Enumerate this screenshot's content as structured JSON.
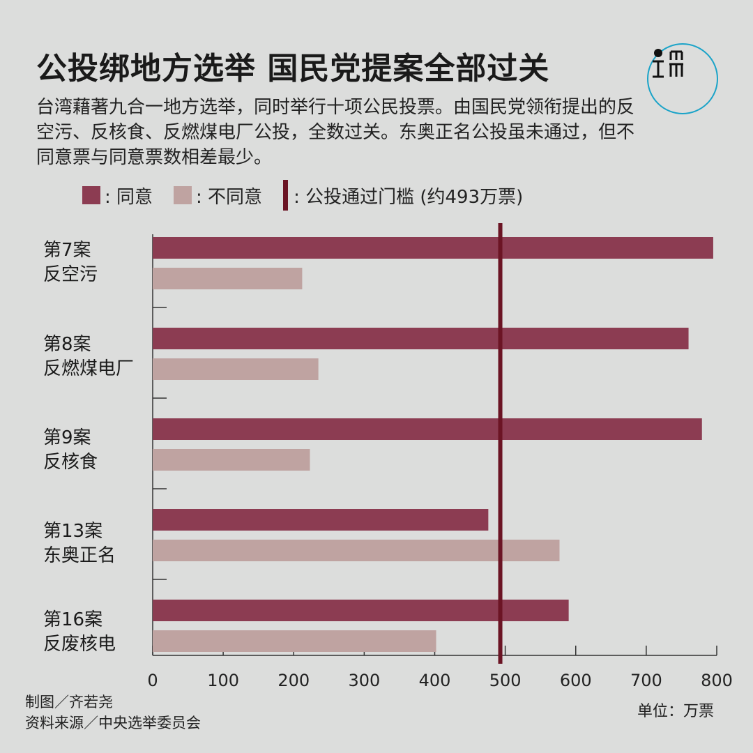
{
  "header": {
    "title": "公投绑地方选举 国民党提案全部过关",
    "subtitle": "台湾藉著九合一地方选举，同时举行十项公民投票。由国民党领衔提出的反空污、反核食、反燃煤电厂公投，全数过关。东奥正名公投虽未通过，但不同意票与同意票数相差最少。"
  },
  "logo": {
    "icon": "initium-logo-icon",
    "ring_color": "#1aa3c8"
  },
  "legend": {
    "agree": ": 同意",
    "disagree": ": 不同意",
    "threshold": ": 公投通过门槛 (约493万票)"
  },
  "chart_data": {
    "type": "bar",
    "orientation": "horizontal",
    "categories": [
      {
        "line1": "第7案",
        "line2": "反空污"
      },
      {
        "line1": "第8案",
        "line2": "反燃煤电厂"
      },
      {
        "line1": "第9案",
        "line2": "反核食"
      },
      {
        "line1": "第13案",
        "line2": "东奥正名"
      },
      {
        "line1": "第16案",
        "line2": "反废核电"
      }
    ],
    "series": [
      {
        "name": "同意",
        "color": "#8c3c52",
        "values": [
          795,
          760,
          779,
          476,
          590
        ]
      },
      {
        "name": "不同意",
        "color": "#bfa3a1",
        "values": [
          212,
          235,
          223,
          577,
          402
        ]
      }
    ],
    "threshold": {
      "value": 493,
      "color": "#6b1424"
    },
    "xlim": [
      0,
      800
    ],
    "xticks": [
      0,
      100,
      200,
      300,
      400,
      500,
      600,
      700,
      800
    ],
    "unit_label": "单位：万票"
  },
  "footer": {
    "credit_line1": "制图／齐若尧",
    "credit_line2": "资料来源／中央选举委员会"
  }
}
